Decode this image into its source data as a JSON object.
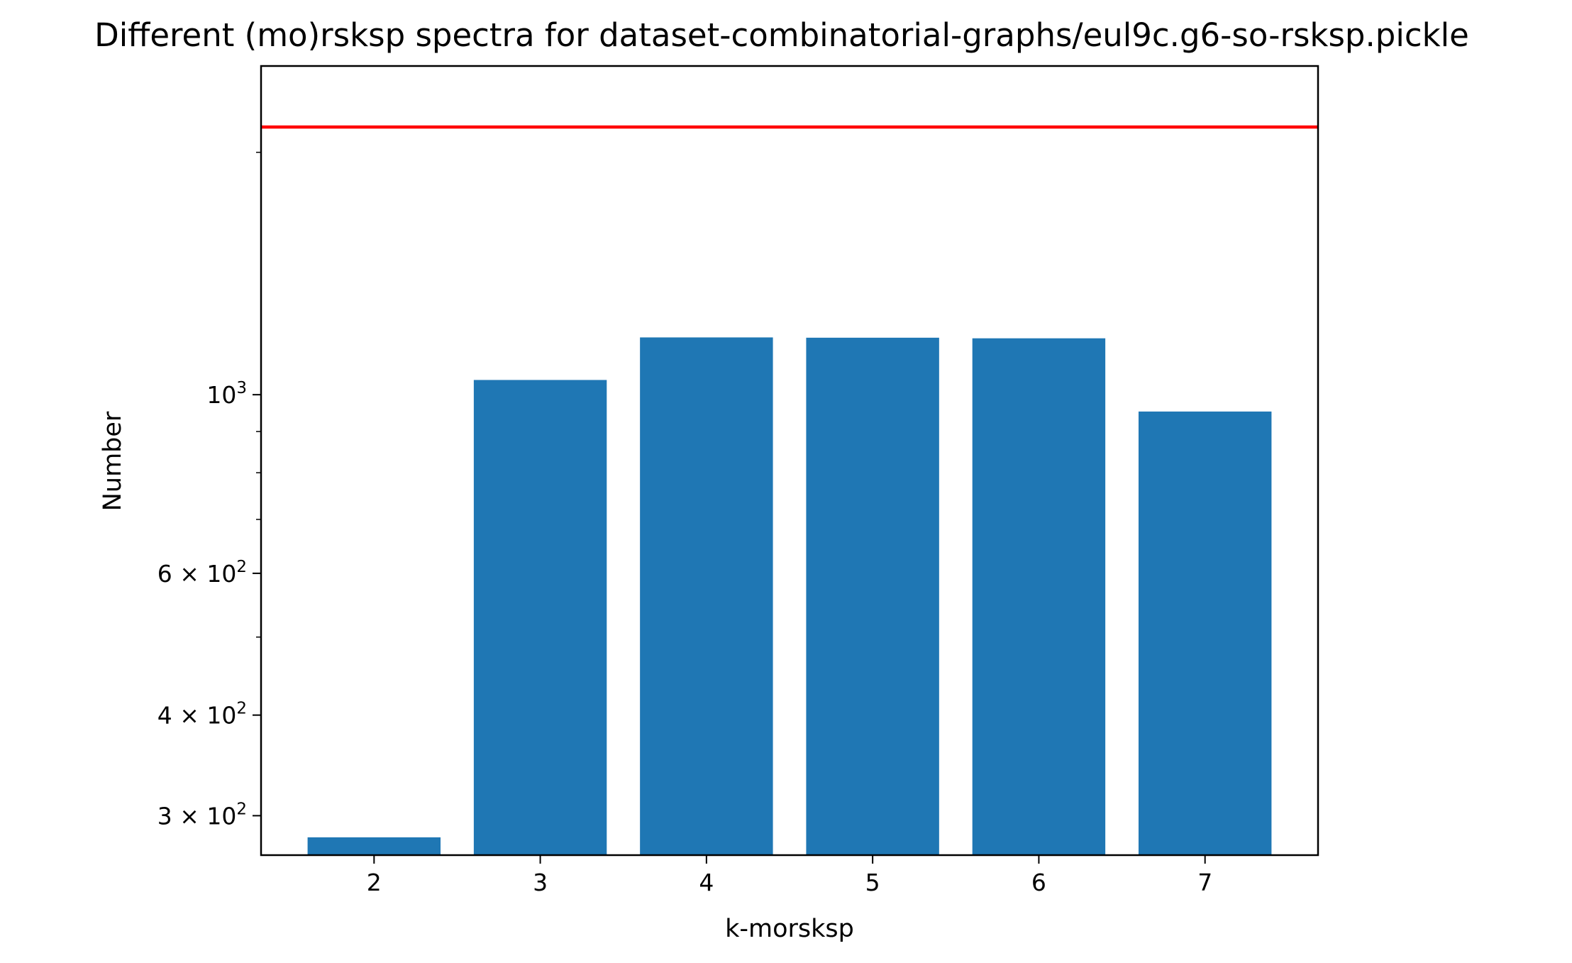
{
  "chart_data": {
    "type": "bar",
    "title": "Different (mo)rsksp spectra for dataset-combinatorial-graphs/eul9c.g6-so-rsksp.pickle",
    "xlabel": "k-morsksp",
    "ylabel": "Number",
    "yscale": "log",
    "categories": [
      "2",
      "3",
      "4",
      "5",
      "6",
      "7"
    ],
    "x": [
      2,
      3,
      4,
      5,
      6,
      7
    ],
    "values": [
      282,
      1043,
      1178,
      1177,
      1175,
      953
    ],
    "xlim": [
      1.32,
      7.68
    ],
    "ylim": [
      268,
      2560
    ],
    "bar_color": "#1f77b4",
    "reference_line": {
      "value": 2150,
      "color": "#ff0000"
    },
    "y_major_ticks": [
      {
        "value": 1000,
        "base": "10",
        "exp": "3"
      },
      {
        "value": 600,
        "base": "6 × 10",
        "exp": "2"
      },
      {
        "value": 400,
        "base": "4 × 10",
        "exp": "2"
      },
      {
        "value": 300,
        "base": "3 × 10",
        "exp": "2"
      }
    ],
    "y_minor_ticks": [
      500,
      700,
      800,
      900,
      2000
    ],
    "grid": false,
    "legend": "none"
  }
}
